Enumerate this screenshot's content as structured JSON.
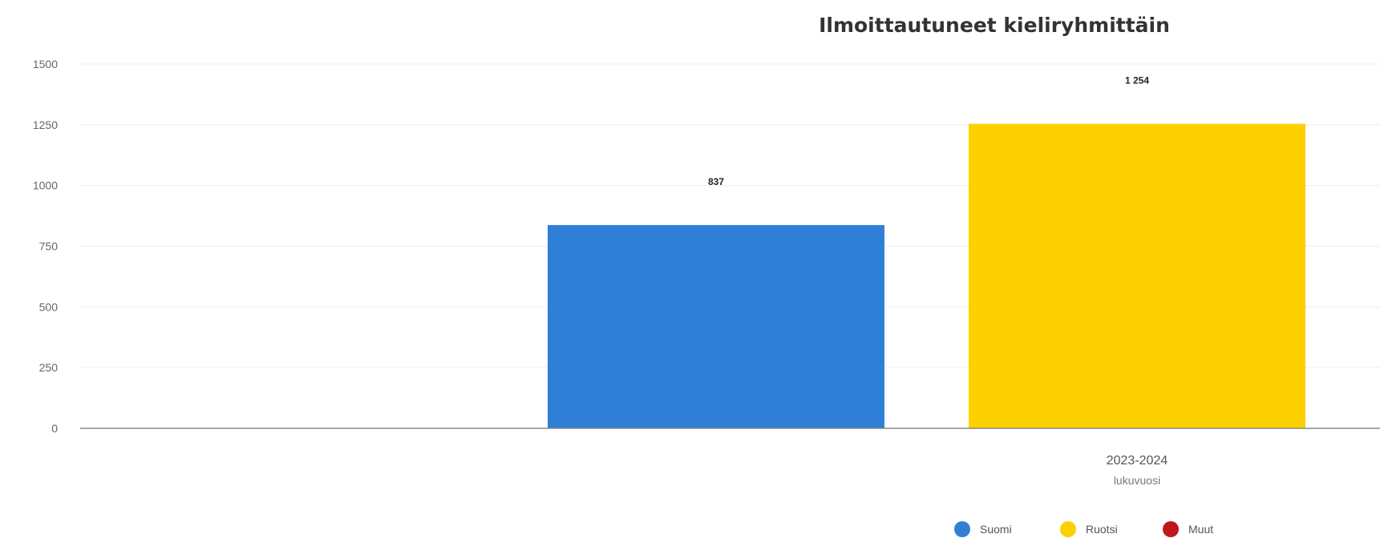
{
  "chart_data": {
    "type": "bar",
    "title": "Ilmoittautuneet kieliryhmittäin",
    "categories": [
      "2023-2024"
    ],
    "xlabel": "lukuvuosi",
    "ylabel": "",
    "ylim": [
      0,
      1500
    ],
    "yticks": [
      0,
      250,
      500,
      750,
      1000,
      1250,
      1500
    ],
    "grid": true,
    "legend_position": "bottom-right",
    "series": [
      {
        "name": "Suomi",
        "values": [
          837
        ],
        "color": "#2f7fd6",
        "label": "837"
      },
      {
        "name": "Ruotsi",
        "values": [
          1254
        ],
        "color": "#fdd000",
        "label": "1 254"
      },
      {
        "name": "Muut",
        "values": [
          0
        ],
        "color": "#c0161c",
        "label": ""
      }
    ]
  }
}
